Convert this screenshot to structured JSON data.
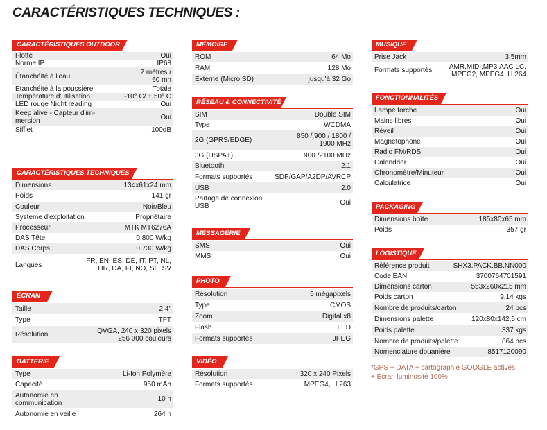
{
  "title": "CARACTÉRISTIQUES TECHNIQUES :",
  "sections": {
    "outdoor": {
      "title": "CARACTÉRISTIQUES OUTDOOR",
      "rows": [
        {
          "label": "Flotte",
          "value": "Oui"
        },
        {
          "label": "Norme IP",
          "value": "IP68"
        },
        {
          "label": "Étanchéité à l'eau",
          "value": "2 mètres /\n60 mn"
        },
        {
          "label": "Étanchéité à la poussière",
          "value": "Totale"
        },
        {
          "label": "Température d'utilisation",
          "value": "-10° C/ + 50° C"
        },
        {
          "label": "LED rouge Night reading",
          "value": "Oui"
        },
        {
          "label": "Keep alive - Capteur d'im-\nmersion",
          "value": "Oui"
        },
        {
          "label": "Sifflet",
          "value": "100dB"
        }
      ]
    },
    "technique": {
      "title": "CARACTÉRISTIQUES TECHNIQUES",
      "rows": [
        {
          "label": "Dimensions",
          "value": "134x61x24 mm"
        },
        {
          "label": "Poids",
          "value": "141 gr"
        },
        {
          "label": "Couleur",
          "value": "Noir/Bleu"
        },
        {
          "label": "Système d'exploitation",
          "value": "Propriétaire"
        },
        {
          "label": "Processeur",
          "value": "MTK MT6276A"
        },
        {
          "label": "DAS Tête",
          "value": "0,800 W/kg"
        },
        {
          "label": "DAS Corps",
          "value": "0,730 W/kg"
        },
        {
          "label": "Langues",
          "value": "FR, EN, ES, DE, IT, PT, NL,\nHR, DA, FI, NO, SL, SV"
        }
      ]
    },
    "ecran": {
      "title": "ÉCRAN",
      "rows": [
        {
          "label": "Taille",
          "value": "2.4\""
        },
        {
          "label": "Type",
          "value": "TFT"
        },
        {
          "label": "Résolution",
          "value": "QVGA, 240 x 320 pixels\n256 000 couleurs"
        }
      ]
    },
    "batterie": {
      "title": "BATTERIE",
      "rows": [
        {
          "label": "Type",
          "value": "Li-Ion Polymère"
        },
        {
          "label": "Capacité",
          "value": "950 mAh"
        },
        {
          "label": "Autonomie en\ncommunication",
          "value": "10 h"
        },
        {
          "label": "Autonomie en veille",
          "value": "264 h"
        }
      ]
    },
    "memoire": {
      "title": "MÉMOIRE",
      "rows": [
        {
          "label": "ROM",
          "value": "64 Mo"
        },
        {
          "label": "RAM",
          "value": "128 Mo"
        },
        {
          "label": "Externe (Micro SD)",
          "value": "jusqu'à 32 Go"
        }
      ]
    },
    "reseau": {
      "title": "RÉSEAU & CONNECTIVITÉ",
      "rows": [
        {
          "label": "SIM",
          "value": "Double SIM"
        },
        {
          "label": "Type",
          "value": "WCDMA"
        },
        {
          "label": "2G (GPRS/EDGE)",
          "value": "850 / 900 / 1800 /\n1900 MHz"
        },
        {
          "label": "3G (HSPA+)",
          "value": "900 /2100 MHz"
        },
        {
          "label": "Bluetooth",
          "value": "2.1"
        },
        {
          "label": "Formats supportés",
          "value": "SDP/GAP/A2DP/AVRCP"
        },
        {
          "label": "USB",
          "value": "2.0"
        },
        {
          "label": "Partage de connexion\nUSB",
          "value": "Oui"
        }
      ]
    },
    "messagerie": {
      "title": "MESSAGERIE",
      "rows": [
        {
          "label": "SMS",
          "value": "Oui"
        },
        {
          "label": "MMS",
          "value": "Oui"
        }
      ]
    },
    "photo": {
      "title": "PHOTO",
      "rows": [
        {
          "label": "Résolution",
          "value": "5 mégapixels"
        },
        {
          "label": "Type",
          "value": "CMOS"
        },
        {
          "label": "Zoom",
          "value": "Digital x8"
        },
        {
          "label": "Flash",
          "value": "LED"
        },
        {
          "label": "Formats supportés",
          "value": "JPEG"
        }
      ]
    },
    "video": {
      "title": "VIDÉO",
      "rows": [
        {
          "label": "Résolution",
          "value": "320 x 240 Pixels"
        },
        {
          "label": "Formats supportés",
          "value": "MPEG4, H.263"
        }
      ]
    },
    "musique": {
      "title": "MUSIQUE",
      "rows": [
        {
          "label": "Prise Jack",
          "value": "3,5mm"
        },
        {
          "label": "Formats supportés",
          "value": "AMR,MIDI,MP3,AAC LC,\nMPEG2, MPEG4, H.264"
        }
      ]
    },
    "fonctionnalites": {
      "title": "FONCTIONNALITÉS",
      "rows": [
        {
          "label": "Lampe torche",
          "value": "Oui"
        },
        {
          "label": "Mains libres",
          "value": "Oui"
        },
        {
          "label": "Réveil",
          "value": "Oui"
        },
        {
          "label": "Magnétophone",
          "value": "Oui"
        },
        {
          "label": "Radio FM/RDS",
          "value": "Oui"
        },
        {
          "label": "Calendrier",
          "value": "Oui"
        },
        {
          "label": "Chronomètre/Minuteur",
          "value": "Oui"
        },
        {
          "label": "Calculatrice",
          "value": "Oui"
        }
      ]
    },
    "packaging": {
      "title": "PACKAGING",
      "rows": [
        {
          "label": "Dimensions boîte",
          "value": "185x80x65 mm"
        },
        {
          "label": "Poids",
          "value": "357 gr"
        }
      ]
    },
    "logistique": {
      "title": "LOGISTIQUE",
      "rows": [
        {
          "label": "Référence produit",
          "value": "SHX3.PACK.BB.NN000"
        },
        {
          "label": "Code EAN",
          "value": "3700764701591"
        },
        {
          "label": "Dimensions carton",
          "value": "553x260x215 mm"
        },
        {
          "label": "Poids carton",
          "value": "9,14 kgs"
        },
        {
          "label": "Nombre de produits/carton",
          "value": "24 pcs"
        },
        {
          "label": "Dimensions palette",
          "value": "120x80x142,5 cm"
        },
        {
          "label": "Poids palette",
          "value": "337 kgs"
        },
        {
          "label": "Nombre de produits/palette",
          "value": "864 pcs"
        },
        {
          "label": "Nomenclature douanière",
          "value": "8517120090"
        }
      ]
    }
  },
  "footnote": "*GPS + DATA + cartographie GOOGLE activés\n+ Ecran luminosité 100%",
  "colors": {
    "accent": "#e2261b",
    "row_alt": "#ececec",
    "footnote": "#b06a55"
  }
}
